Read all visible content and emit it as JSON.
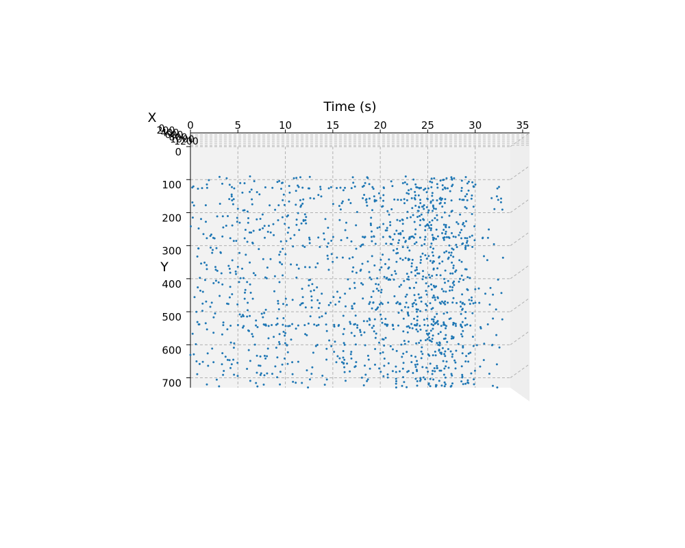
{
  "chart_data": {
    "type": "scatter",
    "title": "",
    "time_axis": {
      "label": "Time (s)",
      "range": [
        0,
        35
      ],
      "ticks": [
        0,
        5,
        10,
        15,
        20,
        25,
        30,
        35
      ]
    },
    "y_axis": {
      "label": "Y",
      "range": [
        0,
        730
      ],
      "ticks": [
        0,
        100,
        200,
        300,
        400,
        500,
        600,
        700
      ]
    },
    "x_axis": {
      "label": "X",
      "range": [
        0,
        1300
      ],
      "ticks": [
        0,
        200,
        400,
        600,
        800,
        1000,
        1200
      ]
    },
    "grid": true,
    "marker_color": "#1f77b4",
    "pane_color": "#f2f2f2",
    "point_count": 1400,
    "seed": 42,
    "time_density": [
      [
        0,
        0.6
      ],
      [
        2,
        0.8
      ],
      [
        4,
        1.0
      ],
      [
        6,
        0.9
      ],
      [
        8,
        1.0
      ],
      [
        10,
        1.1
      ],
      [
        12,
        0.9
      ],
      [
        14,
        1.0
      ],
      [
        16,
        1.1
      ],
      [
        18,
        1.2
      ],
      [
        20,
        1.6
      ],
      [
        22,
        1.9
      ],
      [
        24,
        2.3
      ],
      [
        26,
        2.6
      ],
      [
        28,
        2.8
      ],
      [
        29,
        2.6
      ],
      [
        30,
        1.2
      ],
      [
        32,
        0.7
      ],
      [
        33,
        0.3
      ]
    ],
    "dense_columns": [
      23.8,
      25.5,
      26.8,
      27.6,
      28.6,
      29.1
    ]
  }
}
